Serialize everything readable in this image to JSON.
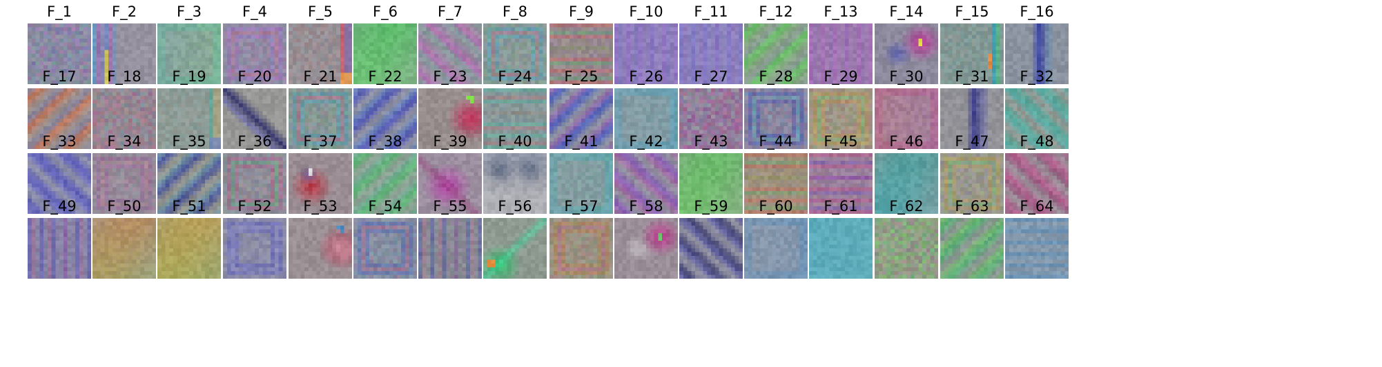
{
  "figure": {
    "filters": [
      {
        "label": "F_1",
        "palette": [
          "#8a8a9a",
          "#6d6fc8",
          "#c26fb0",
          "#63b78a"
        ],
        "pattern": "noise"
      },
      {
        "label": "F_2",
        "palette": [
          "#9a969c",
          "#c24ba3",
          "#3d9be0",
          "#e4d24a"
        ],
        "pattern": "left-bands"
      },
      {
        "label": "F_3",
        "palette": [
          "#8fa096",
          "#53c29a",
          "#8ad07c",
          "#7c98c0"
        ],
        "pattern": "frame-soft"
      },
      {
        "label": "F_4",
        "palette": [
          "#958ca2",
          "#a46fd0",
          "#c46a8a",
          "#5aa7a3"
        ],
        "pattern": "frame"
      },
      {
        "label": "F_5",
        "palette": [
          "#959595",
          "#e44a5a",
          "#4d8be0",
          "#f0a040"
        ],
        "pattern": "right-edge"
      },
      {
        "label": "F_6",
        "palette": [
          "#7ea98a",
          "#4ec45e",
          "#95d08c",
          "#6c8f7d"
        ],
        "pattern": "smooth"
      },
      {
        "label": "F_7",
        "palette": [
          "#9b929e",
          "#c067b4",
          "#5abf86",
          "#6a72c8"
        ],
        "pattern": "diag-down"
      },
      {
        "label": "F_8",
        "palette": [
          "#8e979c",
          "#4aa3c4",
          "#c06890",
          "#7ac06c"
        ],
        "pattern": "frame"
      },
      {
        "label": "F_9",
        "palette": [
          "#9a9290",
          "#d85a5a",
          "#52b870",
          "#8a60c0"
        ],
        "pattern": "horizontal"
      },
      {
        "label": "F_10",
        "palette": [
          "#8e82b6",
          "#9a6ad0",
          "#7078c8",
          "#a58ab6"
        ],
        "pattern": "vertical"
      },
      {
        "label": "F_11",
        "palette": [
          "#8f88b8",
          "#7a6ad0",
          "#a070c0",
          "#6f8cc0"
        ],
        "pattern": "vertical"
      },
      {
        "label": "F_12",
        "palette": [
          "#88a486",
          "#5ccc5a",
          "#a078c0",
          "#7fb07a"
        ],
        "pattern": "diag-up"
      },
      {
        "label": "F_13",
        "palette": [
          "#9a80ac",
          "#b060c0",
          "#8a6ab6",
          "#a88aa8"
        ],
        "pattern": "vertical"
      },
      {
        "label": "F_14",
        "palette": [
          "#8e8a9e",
          "#c0309a",
          "#3e4ab8",
          "#e2e040"
        ],
        "pattern": "blob-tr"
      },
      {
        "label": "F_15",
        "palette": [
          "#8e9694",
          "#2ea0c0",
          "#3ec47a",
          "#e88a40"
        ],
        "pattern": "right-stripe"
      },
      {
        "label": "F_16",
        "palette": [
          "#8a92a0",
          "#2e3aa8",
          "#4a8ac0",
          "#9aa0a0"
        ],
        "pattern": "vertical-dark"
      },
      {
        "label": "F_17",
        "palette": [
          "#9a8e92",
          "#d06a4a",
          "#4a7ad0",
          "#c0b060"
        ],
        "pattern": "diag-up"
      },
      {
        "label": "F_18",
        "palette": [
          "#968e9a",
          "#b25aa0",
          "#5aa6a0",
          "#c07a6a"
        ],
        "pattern": "noise"
      },
      {
        "label": "F_19",
        "palette": [
          "#8e9a98",
          "#4ab0a0",
          "#e89a6a",
          "#7a8ac0"
        ],
        "pattern": "right-edge"
      },
      {
        "label": "F_20",
        "palette": [
          "#969696",
          "#2a2a6a",
          "#5a5ac0",
          "#c0c0a0"
        ],
        "pattern": "diag-dark"
      },
      {
        "label": "F_21",
        "palette": [
          "#8e9698",
          "#4aa0c0",
          "#c0608a",
          "#6ab070"
        ],
        "pattern": "frame"
      },
      {
        "label": "F_22",
        "palette": [
          "#8e90a2",
          "#3a40c0",
          "#6a9ad0",
          "#a0a0a0"
        ],
        "pattern": "diag-up"
      },
      {
        "label": "F_23",
        "palette": [
          "#988e8e",
          "#c02050",
          "#d05070",
          "#7ae040"
        ],
        "pattern": "blob-right"
      },
      {
        "label": "F_24",
        "palette": [
          "#8e9a96",
          "#4ac0a0",
          "#c06a6a",
          "#6a8ac0"
        ],
        "pattern": "horizontal"
      },
      {
        "label": "F_25",
        "palette": [
          "#9090a0",
          "#3a4ac8",
          "#c05ab0",
          "#6ab0a0"
        ],
        "pattern": "diag-up"
      },
      {
        "label": "F_26",
        "palette": [
          "#8e9aa2",
          "#3aa0c8",
          "#5ab0a0",
          "#9a9aa0"
        ],
        "pattern": "frame-soft"
      },
      {
        "label": "F_27",
        "palette": [
          "#9a8e98",
          "#c04a8a",
          "#8a4ab0",
          "#6ab0a0"
        ],
        "pattern": "noise"
      },
      {
        "label": "F_28",
        "palette": [
          "#8e90a0",
          "#3a4ab0",
          "#4ab0c0",
          "#c06a8a"
        ],
        "pattern": "frame"
      },
      {
        "label": "F_29",
        "palette": [
          "#9a9a8e",
          "#c0a04a",
          "#6ac06a",
          "#c05a8a"
        ],
        "pattern": "frame"
      },
      {
        "label": "F_30",
        "palette": [
          "#a08a9a",
          "#c0508a",
          "#a05ac0",
          "#c07a6a"
        ],
        "pattern": "frame-soft"
      },
      {
        "label": "F_31",
        "palette": [
          "#909098",
          "#2a2a8a",
          "#4a4ac0",
          "#c0c0a0"
        ],
        "pattern": "vertical-dark"
      },
      {
        "label": "F_32",
        "palette": [
          "#909a98",
          "#3ab0a0",
          "#4ac0c0",
          "#c07a5a"
        ],
        "pattern": "diag-down"
      },
      {
        "label": "F_33",
        "palette": [
          "#8e90a8",
          "#4a4ac0",
          "#6a6ad0",
          "#9a9aa0"
        ],
        "pattern": "diag-down"
      },
      {
        "label": "F_34",
        "palette": [
          "#98909a",
          "#a060a0",
          "#c07a8a",
          "#6a9a9a"
        ],
        "pattern": "frame"
      },
      {
        "label": "F_35",
        "palette": [
          "#929292",
          "#2a3aa0",
          "#6ab0c0",
          "#c0c060"
        ],
        "pattern": "diag-up"
      },
      {
        "label": "F_36",
        "palette": [
          "#969296",
          "#c05a8a",
          "#5ab070",
          "#6a8ac0"
        ],
        "pattern": "frame"
      },
      {
        "label": "F_37",
        "palette": [
          "#9a8e94",
          "#c02a3a",
          "#3a4ab0",
          "#e0e0e0"
        ],
        "pattern": "blob-left"
      },
      {
        "label": "F_38",
        "palette": [
          "#8ea294",
          "#4ac06a",
          "#6ab0a0",
          "#9a90a0"
        ],
        "pattern": "diag-up"
      },
      {
        "label": "F_39",
        "palette": [
          "#9a8e9e",
          "#c03ab0",
          "#8a2a6a",
          "#c0a0c0"
        ],
        "pattern": "blob-mid"
      },
      {
        "label": "F_40",
        "palette": [
          "#9ea0aa",
          "#3a4a6a",
          "#6a7a9a",
          "#c0c0c0"
        ],
        "pattern": "top-dark"
      },
      {
        "label": "F_41",
        "palette": [
          "#8e98a0",
          "#3ab0c0",
          "#5ac08a",
          "#9a9aa0"
        ],
        "pattern": "frame-soft"
      },
      {
        "label": "F_42",
        "palette": [
          "#948e9e",
          "#8a4ac0",
          "#c05aa0",
          "#6ab0a0"
        ],
        "pattern": "diag-down"
      },
      {
        "label": "F_43",
        "palette": [
          "#8aa68a",
          "#5ac05a",
          "#8ad07a",
          "#7a9a8a"
        ],
        "pattern": "smooth"
      },
      {
        "label": "F_44",
        "palette": [
          "#9a9290",
          "#d05a5a",
          "#5ab070",
          "#c0a04a"
        ],
        "pattern": "horizontal"
      },
      {
        "label": "F_45",
        "palette": [
          "#968ea0",
          "#c04a8a",
          "#6a4ac0",
          "#c08a6a"
        ],
        "pattern": "horizontal"
      },
      {
        "label": "F_46",
        "palette": [
          "#8e9a9a",
          "#3aa0a0",
          "#4ab0c0",
          "#9aa0a0"
        ],
        "pattern": "smooth"
      },
      {
        "label": "F_47",
        "palette": [
          "#9a9a8e",
          "#c0a04a",
          "#6ac06a",
          "#8a6ac0"
        ],
        "pattern": "frame"
      },
      {
        "label": "F_48",
        "palette": [
          "#a08e9a",
          "#c04a8a",
          "#8a3a6a",
          "#6ab0a0"
        ],
        "pattern": "diag-down"
      },
      {
        "label": "F_49",
        "palette": [
          "#9090a0",
          "#4a4ac0",
          "#c05a8a",
          "#6a9ac0"
        ],
        "pattern": "vertical"
      },
      {
        "label": "F_50",
        "palette": [
          "#a09a8a",
          "#c08a4a",
          "#8ac05a",
          "#a06ac0"
        ],
        "pattern": "smooth"
      },
      {
        "label": "F_51",
        "palette": [
          "#a0a07a",
          "#c0a04a",
          "#8ac05a",
          "#c07a5a"
        ],
        "pattern": "smooth"
      },
      {
        "label": "F_52",
        "palette": [
          "#9090a2",
          "#5a5ac0",
          "#7a7ad0",
          "#a0a0a0"
        ],
        "pattern": "frame"
      },
      {
        "label": "F_53",
        "palette": [
          "#9a9094",
          "#c03a5a",
          "#e0e0e0",
          "#4a8ac0"
        ],
        "pattern": "blob-right"
      },
      {
        "label": "F_54",
        "palette": [
          "#8e92a0",
          "#4a6ac0",
          "#c05a8a",
          "#6ab0a0"
        ],
        "pattern": "frame"
      },
      {
        "label": "F_55",
        "palette": [
          "#969296",
          "#3a4ab0",
          "#c06a8a",
          "#6ac07a"
        ],
        "pattern": "vertical"
      },
      {
        "label": "F_56",
        "palette": [
          "#8e9a90",
          "#2ac06a",
          "#3ae0a0",
          "#e08a3a"
        ],
        "pattern": "blob-bl"
      },
      {
        "label": "F_57",
        "palette": [
          "#9a9690",
          "#c0804a",
          "#c05a8a",
          "#6ab06a"
        ],
        "pattern": "frame"
      },
      {
        "label": "F_58",
        "palette": [
          "#9a8e98",
          "#c02a8a",
          "#e0e0e0",
          "#6ac06a"
        ],
        "pattern": "blob-tr"
      },
      {
        "label": "F_59",
        "palette": [
          "#9090a0",
          "#2a2a6a",
          "#5a5ac0",
          "#a0a0a0"
        ],
        "pattern": "diag-down"
      },
      {
        "label": "F_60",
        "palette": [
          "#8e98aa",
          "#4a8ac0",
          "#6aa0c0",
          "#9a9aa0"
        ],
        "pattern": "frame-soft"
      },
      {
        "label": "F_61",
        "palette": [
          "#6ab0b8",
          "#4aa8c0",
          "#8ac0c0",
          "#9aa0a0"
        ],
        "pattern": "flat"
      },
      {
        "label": "F_62",
        "palette": [
          "#90a090",
          "#4ac06a",
          "#8ad05a",
          "#c05aa0"
        ],
        "pattern": "noise"
      },
      {
        "label": "F_63",
        "palette": [
          "#909a90",
          "#4ac06a",
          "#7ad05a",
          "#6a6ac0"
        ],
        "pattern": "diag-up"
      },
      {
        "label": "F_64",
        "palette": [
          "#8e9aaa",
          "#4a8ac0",
          "#6a9ac0",
          "#9aa0a0"
        ],
        "pattern": "horizontal"
      }
    ]
  }
}
